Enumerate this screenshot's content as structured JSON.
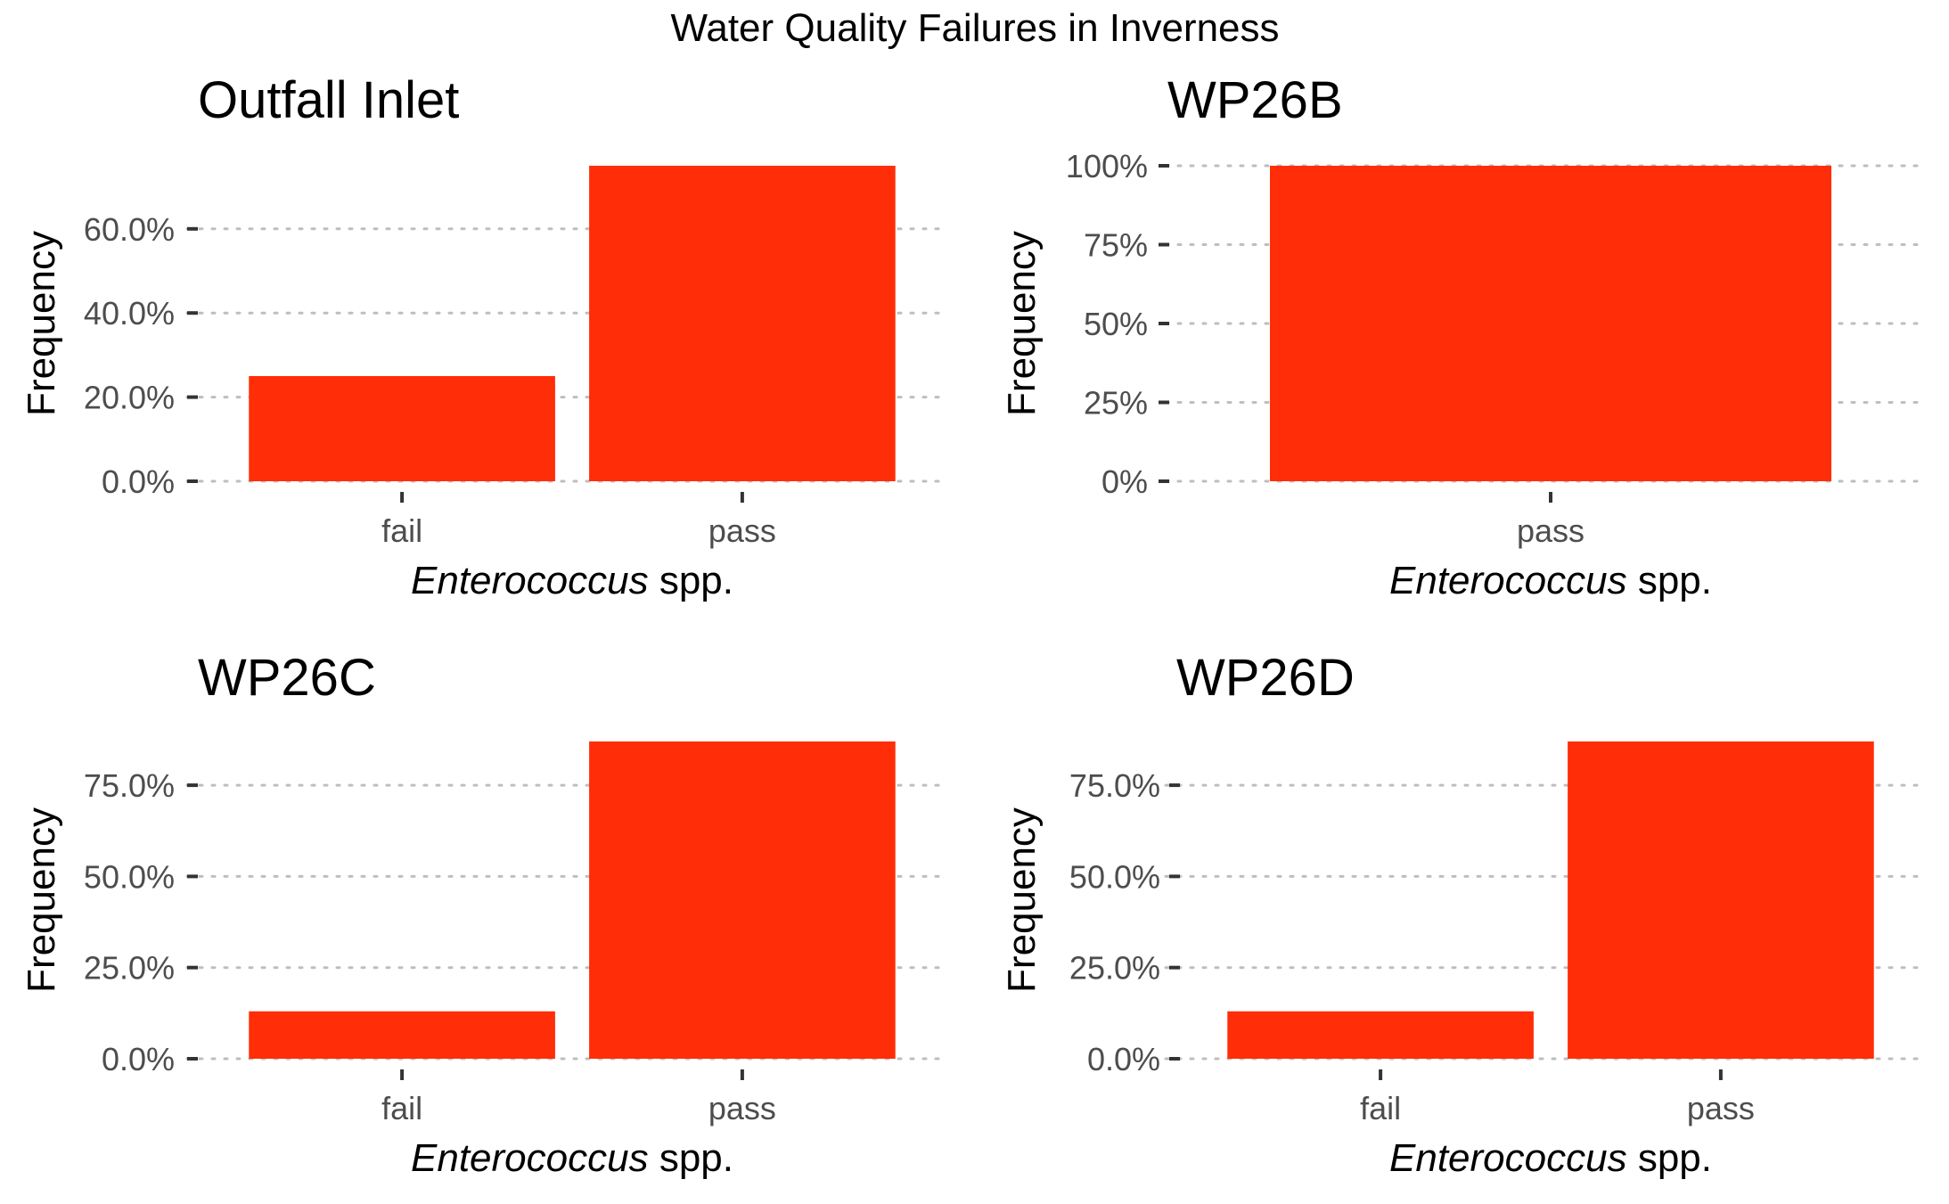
{
  "chart_data": {
    "type": "bar",
    "title": "Water Quality Failures in Inverness",
    "bar_color": "#ff2e08",
    "grid": "horizontal dotted",
    "panels": [
      {
        "title": "Outfall Inlet",
        "categories": [
          "fail",
          "pass"
        ],
        "values": [
          25.0,
          75.0
        ],
        "ylim": [
          0,
          75
        ],
        "yticks": [
          0,
          20,
          40,
          60
        ],
        "ytick_labels": [
          "0.0%",
          "20.0%",
          "40.0%",
          "60.0%"
        ],
        "ylabel": "Frequency",
        "xlabel_italic": "Enterococcus",
        "xlabel_rest": " spp."
      },
      {
        "title": "WP26B",
        "categories": [
          "pass"
        ],
        "values": [
          100.0
        ],
        "ylim": [
          0,
          100
        ],
        "yticks": [
          0,
          25,
          50,
          75,
          100
        ],
        "ytick_labels": [
          "0%",
          "25%",
          "50%",
          "75%",
          "100%"
        ],
        "ylabel": "Frequency",
        "xlabel_italic": "Enterococcus",
        "xlabel_rest": " spp."
      },
      {
        "title": "WP26C",
        "categories": [
          "fail",
          "pass"
        ],
        "values": [
          13.0,
          87.0
        ],
        "ylim": [
          0,
          87
        ],
        "yticks": [
          0,
          25,
          50,
          75
        ],
        "ytick_labels": [
          "0.0%",
          "25.0%",
          "50.0%",
          "75.0%"
        ],
        "ylabel": "Frequency",
        "xlabel_italic": "Enterococcus",
        "xlabel_rest": " spp."
      },
      {
        "title": "WP26D",
        "categories": [
          "fail",
          "pass"
        ],
        "values": [
          13.0,
          87.0
        ],
        "ylim": [
          0,
          87
        ],
        "yticks": [
          0,
          25,
          50,
          75
        ],
        "ytick_labels": [
          "0.0%",
          "25.0%",
          "50.0%",
          "75.0%"
        ],
        "ylabel": "Frequency",
        "xlabel_italic": "Enterococcus",
        "xlabel_rest": " spp."
      }
    ]
  }
}
